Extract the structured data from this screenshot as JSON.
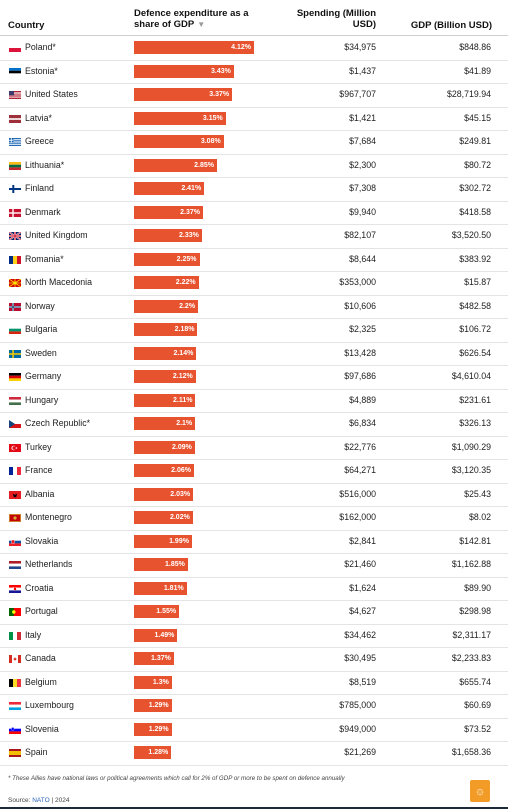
{
  "header": {
    "country": "Country",
    "share_line1": "Defence expenditure as a",
    "share_line2": "share of GDP",
    "sort_icon": "▼",
    "spend_line1": "Spending (Million",
    "spend_line2": "USD)",
    "gdp": "GDP (Billion USD)"
  },
  "chart_data": {
    "type": "table",
    "columns": [
      "Country",
      "Defence expenditure as a share of GDP",
      "Spending (Million USD)",
      "GDP (Billion USD)"
    ],
    "max_share": 4.12,
    "rows": [
      {
        "country": "Poland*",
        "flag": "pl",
        "share": 4.12,
        "share_label": "4.12%",
        "spend": "$34,975",
        "gdp": "$848.86"
      },
      {
        "country": "Estonia*",
        "flag": "ee",
        "share": 3.43,
        "share_label": "3.43%",
        "spend": "$1,437",
        "gdp": "$41.89"
      },
      {
        "country": "United States",
        "flag": "us",
        "share": 3.37,
        "share_label": "3.37%",
        "spend": "$967,707",
        "gdp": "$28,719.94"
      },
      {
        "country": "Latvia*",
        "flag": "lv",
        "share": 3.15,
        "share_label": "3.15%",
        "spend": "$1,421",
        "gdp": "$45.15"
      },
      {
        "country": "Greece",
        "flag": "gr",
        "share": 3.08,
        "share_label": "3.08%",
        "spend": "$7,684",
        "gdp": "$249.81"
      },
      {
        "country": "Lithuania*",
        "flag": "lt",
        "share": 2.85,
        "share_label": "2.85%",
        "spend": "$2,300",
        "gdp": "$80.72"
      },
      {
        "country": "Finland",
        "flag": "fi",
        "share": 2.41,
        "share_label": "2.41%",
        "spend": "$7,308",
        "gdp": "$302.72"
      },
      {
        "country": "Denmark",
        "flag": "dk",
        "share": 2.37,
        "share_label": "2.37%",
        "spend": "$9,940",
        "gdp": "$418.58"
      },
      {
        "country": "United Kingdom",
        "flag": "gb",
        "share": 2.33,
        "share_label": "2.33%",
        "spend": "$82,107",
        "gdp": "$3,520.50"
      },
      {
        "country": "Romania*",
        "flag": "ro",
        "share": 2.25,
        "share_label": "2.25%",
        "spend": "$8,644",
        "gdp": "$383.92"
      },
      {
        "country": "North Macedonia",
        "flag": "mk",
        "share": 2.22,
        "share_label": "2.22%",
        "spend": "$353,000",
        "gdp": "$15.87"
      },
      {
        "country": "Norway",
        "flag": "no",
        "share": 2.2,
        "share_label": "2.2%",
        "spend": "$10,606",
        "gdp": "$482.58"
      },
      {
        "country": "Bulgaria",
        "flag": "bg",
        "share": 2.18,
        "share_label": "2.18%",
        "spend": "$2,325",
        "gdp": "$106.72"
      },
      {
        "country": "Sweden",
        "flag": "se",
        "share": 2.14,
        "share_label": "2.14%",
        "spend": "$13,428",
        "gdp": "$626.54"
      },
      {
        "country": "Germany",
        "flag": "de",
        "share": 2.12,
        "share_label": "2.12%",
        "spend": "$97,686",
        "gdp": "$4,610.04"
      },
      {
        "country": "Hungary",
        "flag": "hu",
        "share": 2.11,
        "share_label": "2.11%",
        "spend": "$4,889",
        "gdp": "$231.61"
      },
      {
        "country": "Czech Republic*",
        "flag": "cz",
        "share": 2.1,
        "share_label": "2.1%",
        "spend": "$6,834",
        "gdp": "$326.13"
      },
      {
        "country": "Turkey",
        "flag": "tr",
        "share": 2.09,
        "share_label": "2.09%",
        "spend": "$22,776",
        "gdp": "$1,090.29"
      },
      {
        "country": "France",
        "flag": "fr",
        "share": 2.06,
        "share_label": "2.06%",
        "spend": "$64,271",
        "gdp": "$3,120.35"
      },
      {
        "country": "Albania",
        "flag": "al",
        "share": 2.03,
        "share_label": "2.03%",
        "spend": "$516,000",
        "gdp": "$25.43"
      },
      {
        "country": "Montenegro",
        "flag": "me",
        "share": 2.02,
        "share_label": "2.02%",
        "spend": "$162,000",
        "gdp": "$8.02"
      },
      {
        "country": "Slovakia",
        "flag": "sk",
        "share": 1.99,
        "share_label": "1.99%",
        "spend": "$2,841",
        "gdp": "$142.81"
      },
      {
        "country": "Netherlands",
        "flag": "nl",
        "share": 1.85,
        "share_label": "1.85%",
        "spend": "$21,460",
        "gdp": "$1,162.88"
      },
      {
        "country": "Croatia",
        "flag": "hr",
        "share": 1.81,
        "share_label": "1.81%",
        "spend": "$1,624",
        "gdp": "$89.90"
      },
      {
        "country": "Portugal",
        "flag": "pt",
        "share": 1.55,
        "share_label": "1.55%",
        "spend": "$4,627",
        "gdp": "$298.98"
      },
      {
        "country": "Italy",
        "flag": "it",
        "share": 1.49,
        "share_label": "1.49%",
        "spend": "$34,462",
        "gdp": "$2,311.17"
      },
      {
        "country": "Canada",
        "flag": "ca",
        "share": 1.37,
        "share_label": "1.37%",
        "spend": "$30,495",
        "gdp": "$2,233.83"
      },
      {
        "country": "Belgium",
        "flag": "be",
        "share": 1.3,
        "share_label": "1.3%",
        "spend": "$8,519",
        "gdp": "$655.74"
      },
      {
        "country": "Luxembourg",
        "flag": "lu",
        "share": 1.29,
        "share_label": "1.29%",
        "spend": "$785,000",
        "gdp": "$60.69"
      },
      {
        "country": "Slovenia",
        "flag": "si",
        "share": 1.29,
        "share_label": "1.29%",
        "spend": "$949,000",
        "gdp": "$73.52"
      },
      {
        "country": "Spain",
        "flag": "es",
        "share": 1.28,
        "share_label": "1.28%",
        "spend": "$21,269",
        "gdp": "$1,658.36"
      }
    ]
  },
  "footer": {
    "footnote": "* These Allies have national laws or political agreements which call for 2% of GDP or more to be spent on defence annually",
    "source_prefix": "Source: ",
    "source_name": "NATO",
    "source_suffix": " | 2024",
    "logo_icon": "al-jazeera-logo-icon",
    "logo_glyph": "۞"
  },
  "colors": {
    "bar": "#e8532f",
    "text": "#222222",
    "rule": "#e4e4e4",
    "link": "#2a64b8",
    "logo": "#f29b26"
  }
}
